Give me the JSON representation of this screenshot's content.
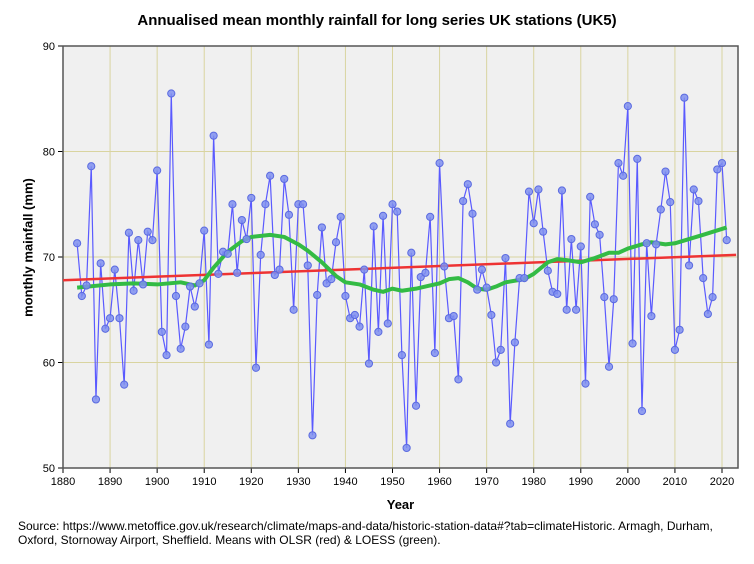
{
  "chart_data": {
    "type": "line",
    "title": "Annualised mean monthly rainfall for long series UK stations (UK5)",
    "xlabel": "Year",
    "ylabel": "monthly mainfall (mm)",
    "xlim": [
      1880,
      2023
    ],
    "ylim": [
      50,
      90
    ],
    "xticks": [
      "1880",
      "1890",
      "1900",
      "1910",
      "1920",
      "1930",
      "1940",
      "1950",
      "1960",
      "1970",
      "1980",
      "1990",
      "2000",
      "2010",
      "2020"
    ],
    "yticks": [
      "50",
      "60",
      "70",
      "80",
      "90"
    ],
    "grid": true,
    "start_year": 1883,
    "series": [
      {
        "name": "Annual mean",
        "color": "#5a5aff",
        "values": [
          71.3,
          66.3,
          67.3,
          78.6,
          56.5,
          69.4,
          63.2,
          64.2,
          68.8,
          64.2,
          57.9,
          72.3,
          66.8,
          71.6,
          67.4,
          72.4,
          71.6,
          78.2,
          62.9,
          60.7,
          85.5,
          66.3,
          61.3,
          63.4,
          67.2,
          65.3,
          67.5,
          72.5,
          61.7,
          81.5,
          68.4,
          70.5,
          70.3,
          75.0,
          68.5,
          73.5,
          71.7,
          75.6,
          59.5,
          70.2,
          75.0,
          77.7,
          68.3,
          68.8,
          77.4,
          74.0,
          65.0,
          75.0,
          75.0,
          69.2,
          53.1,
          66.4,
          72.8,
          67.5,
          67.9,
          71.4,
          73.8,
          66.3,
          64.2,
          64.5,
          63.4,
          68.8,
          59.9,
          72.9,
          62.9,
          73.9,
          63.7,
          75.0,
          74.3,
          60.7,
          51.9,
          70.4,
          55.9,
          68.1,
          68.5,
          73.8,
          60.9,
          78.9,
          69.1,
          64.2,
          64.4,
          58.4,
          75.3,
          76.9,
          74.1,
          66.9,
          68.8,
          67.1,
          64.5,
          60.0,
          61.2,
          69.9,
          54.2,
          61.9,
          68.0,
          68.0,
          76.2,
          73.2,
          76.4,
          72.4,
          68.7,
          66.7,
          66.5,
          76.3,
          65.0,
          71.7,
          65.0,
          71.0,
          58.0,
          75.7,
          73.1,
          72.1,
          66.2,
          59.6,
          66.0,
          78.9,
          77.7,
          84.3,
          61.8,
          79.3,
          55.4,
          71.3,
          64.4,
          71.2,
          74.5,
          78.1,
          75.2,
          61.2,
          63.1,
          85.1,
          69.2,
          76.4,
          75.3,
          68.0,
          64.6,
          66.2,
          78.3,
          78.9,
          71.6
        ]
      },
      {
        "name": "OLSR",
        "color": "#ee3333",
        "x": [
          1880,
          2023
        ],
        "values": [
          67.8,
          70.2
        ]
      },
      {
        "name": "LOESS",
        "color": "#33bb44",
        "x": [
          1883,
          1890,
          1895,
          1900,
          1905,
          1908,
          1910,
          1912,
          1915,
          1918,
          1920,
          1924,
          1927,
          1930,
          1932,
          1935,
          1938,
          1940,
          1943,
          1946,
          1948,
          1950,
          1952,
          1955,
          1958,
          1960,
          1962,
          1964,
          1966,
          1968,
          1970,
          1972,
          1974,
          1978,
          1980,
          1983,
          1985,
          1987,
          1990,
          1993,
          1996,
          1998,
          2000,
          2003,
          2005,
          2008,
          2010,
          2013,
          2016,
          2021
        ],
        "values": [
          67.1,
          67.4,
          67.5,
          67.4,
          67.6,
          67.3,
          67.8,
          69.0,
          70.5,
          71.5,
          71.9,
          72.1,
          71.9,
          71.2,
          70.6,
          69.5,
          68.2,
          67.6,
          67.4,
          66.9,
          66.7,
          67.0,
          66.8,
          67.0,
          67.3,
          67.5,
          67.9,
          68.0,
          67.6,
          67.0,
          66.9,
          67.2,
          67.6,
          67.9,
          68.4,
          69.5,
          69.8,
          69.7,
          69.5,
          69.9,
          70.4,
          70.4,
          70.8,
          71.2,
          71.4,
          71.2,
          71.3,
          71.7,
          72.1,
          72.8
        ]
      }
    ]
  },
  "source": "Source: https://www.metoffice.gov.uk/research/climate/maps-and-data/historic-station-data#?tab=climateHistoric. Armagh, Durham, Oxford, Stornoway Airport, Sheffield. Means with OLSR (red) & LOESS (green)."
}
